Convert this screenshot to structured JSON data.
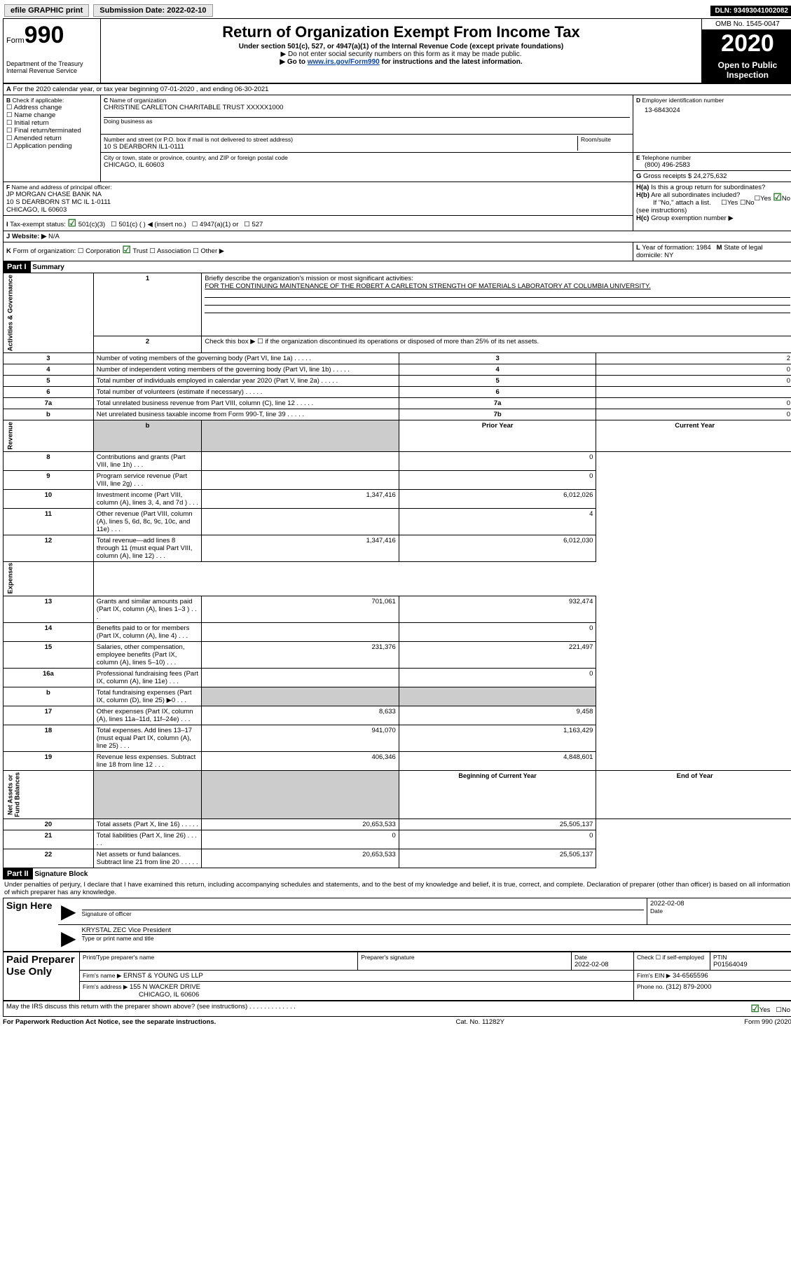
{
  "topbar": {
    "efile": "efile GRAPHIC print",
    "sub_label": "Submission Date:",
    "sub_date": "2022-02-10",
    "dln": "DLN: 93493041002082"
  },
  "header": {
    "form_prefix": "Form",
    "form_num": "990",
    "dept": "Department of the Treasury",
    "irs": "Internal Revenue Service",
    "title": "Return of Organization Exempt From Income Tax",
    "sub1": "Under section 501(c), 527, or 4947(a)(1) of the Internal Revenue Code (except private foundations)",
    "sub2": "▶ Do not enter social security numbers on this form as it may be made public.",
    "sub3_pre": "▶ Go to ",
    "sub3_link": "www.irs.gov/Form990",
    "sub3_post": " for instructions and the latest information.",
    "omb": "OMB No. 1545-0047",
    "year": "2020",
    "public1": "Open to Public",
    "public2": "Inspection"
  },
  "lineA": "For the 2020 calendar year, or tax year beginning 07-01-2020   , and ending 06-30-2021",
  "boxB": {
    "label": "Check if applicable:",
    "opts": [
      "Address change",
      "Name change",
      "Initial return",
      "Final return/terminated",
      "Amended return",
      "Application pending"
    ]
  },
  "boxC": {
    "name_label": "Name of organization",
    "name": "CHRISTINE CARLETON CHARITABLE TRUST XXXXX1000",
    "dba_label": "Doing business as",
    "addr_label": "Number and street (or P.O. box if mail is not delivered to street address)",
    "room": "Room/suite",
    "addr": "10 S DEARBORN IL1-0111",
    "city_label": "City or town, state or province, country, and ZIP or foreign postal code",
    "city": "CHICAGO, IL  60603"
  },
  "boxD": {
    "label": "Employer identification number",
    "val": "13-6843024"
  },
  "boxE": {
    "label": "Telephone number",
    "val": "(800) 496-2583"
  },
  "boxG": {
    "label": "Gross receipts $",
    "val": "24,275,632"
  },
  "boxF": {
    "label": "Name and address of principal officer:",
    "name": "JP MORGAN CHASE BANK NA",
    "addr1": "10 S DEARBORN ST MC IL 1-0111",
    "addr2": "CHICAGO, IL  60603"
  },
  "boxH": {
    "a": "Is this a group return for subordinates?",
    "b": "Are all subordinates included?",
    "note": "If \"No,\" attach a list. (see instructions)",
    "c": "Group exemption number ▶"
  },
  "lineI": {
    "label": "Tax-exempt status:",
    "o1": "501(c)(3)",
    "o2": "501(c) (  ) ◀ (insert no.)",
    "o3": "4947(a)(1) or",
    "o4": "527"
  },
  "lineJ": {
    "label": "Website: ▶",
    "val": "N/A"
  },
  "lineK": {
    "label": "Form of organization:",
    "o1": "Corporation",
    "o2": "Trust",
    "o3": "Association",
    "o4": "Other ▶"
  },
  "lineL": {
    "label": "Year of formation:",
    "val": "1984"
  },
  "lineM": {
    "label": "State of legal domicile:",
    "val": "NY"
  },
  "part1": {
    "title": "Part I",
    "sub": "Summary",
    "q1": "Briefly describe the organization's mission or most significant activities:",
    "q1a": "FOR THE CONTINUING MAINTENANCE OF THE ROBERT A CARLETON STRENGTH OF MATERIALS LABORATORY AT COLUMBIA UNIVERSITY.",
    "q2": "Check this box ▶ ☐  if the organization discontinued its operations or disposed of more than 25% of its net assets.",
    "rows_gov": [
      {
        "n": "3",
        "t": "Number of voting members of the governing body (Part VI, line 1a)",
        "box": "3",
        "v": "2"
      },
      {
        "n": "4",
        "t": "Number of independent voting members of the governing body (Part VI, line 1b)",
        "box": "4",
        "v": "0"
      },
      {
        "n": "5",
        "t": "Total number of individuals employed in calendar year 2020 (Part V, line 2a)",
        "box": "5",
        "v": "0"
      },
      {
        "n": "6",
        "t": "Total number of volunteers (estimate if necessary)",
        "box": "6",
        "v": ""
      },
      {
        "n": "7a",
        "t": "Total unrelated business revenue from Part VIII, column (C), line 12",
        "box": "7a",
        "v": "0"
      },
      {
        "n": "b",
        "t": "Net unrelated business taxable income from Form 990-T, line 39",
        "box": "7b",
        "v": "0"
      }
    ],
    "hdr_prior": "Prior Year",
    "hdr_curr": "Current Year",
    "rows_rev": [
      {
        "n": "8",
        "t": "Contributions and grants (Part VIII, line 1h)",
        "p": "",
        "c": "0"
      },
      {
        "n": "9",
        "t": "Program service revenue (Part VIII, line 2g)",
        "p": "",
        "c": "0"
      },
      {
        "n": "10",
        "t": "Investment income (Part VIII, column (A), lines 3, 4, and 7d )",
        "p": "1,347,416",
        "c": "6,012,026"
      },
      {
        "n": "11",
        "t": "Other revenue (Part VIII, column (A), lines 5, 6d, 8c, 9c, 10c, and 11e)",
        "p": "",
        "c": "4"
      },
      {
        "n": "12",
        "t": "Total revenue—add lines 8 through 11 (must equal Part VIII, column (A), line 12)",
        "p": "1,347,416",
        "c": "6,012,030"
      }
    ],
    "rows_exp": [
      {
        "n": "13",
        "t": "Grants and similar amounts paid (Part IX, column (A), lines 1–3 )",
        "p": "701,061",
        "c": "932,474"
      },
      {
        "n": "14",
        "t": "Benefits paid to or for members (Part IX, column (A), line 4)",
        "p": "",
        "c": "0"
      },
      {
        "n": "15",
        "t": "Salaries, other compensation, employee benefits (Part IX, column (A), lines 5–10)",
        "p": "231,376",
        "c": "221,497"
      },
      {
        "n": "16a",
        "t": "Professional fundraising fees (Part IX, column (A), line 11e)",
        "p": "",
        "c": "0"
      },
      {
        "n": "b",
        "t": "Total fundraising expenses (Part IX, column (D), line 25) ▶0",
        "p": "GRAY",
        "c": "GRAY"
      },
      {
        "n": "17",
        "t": "Other expenses (Part IX, column (A), lines 11a–11d, 11f–24e)",
        "p": "8,633",
        "c": "9,458"
      },
      {
        "n": "18",
        "t": "Total expenses. Add lines 13–17 (must equal Part IX, column (A), line 25)",
        "p": "941,070",
        "c": "1,163,429"
      },
      {
        "n": "19",
        "t": "Revenue less expenses. Subtract line 18 from line 12",
        "p": "406,346",
        "c": "4,848,601"
      }
    ],
    "hdr_beg": "Beginning of Current Year",
    "hdr_end": "End of Year",
    "rows_net": [
      {
        "n": "20",
        "t": "Total assets (Part X, line 16)",
        "p": "20,653,533",
        "c": "25,505,137"
      },
      {
        "n": "21",
        "t": "Total liabilities (Part X, line 26)",
        "p": "0",
        "c": "0"
      },
      {
        "n": "22",
        "t": "Net assets or fund balances. Subtract line 21 from line 20",
        "p": "20,653,533",
        "c": "25,505,137"
      }
    ]
  },
  "part2": {
    "title": "Part II",
    "sub": "Signature Block",
    "decl": "Under penalties of perjury, I declare that I have examined this return, including accompanying schedules and statements, and to the best of my knowledge and belief, it is true, correct, and complete. Declaration of preparer (other than officer) is based on all information of which preparer has any knowledge."
  },
  "sign": {
    "here": "Sign Here",
    "sig": "Signature of officer",
    "date_l": "Date",
    "date": "2022-02-08",
    "name": "KRYSTAL ZEC Vice President",
    "name_l": "Type or print name and title"
  },
  "paid": {
    "title": "Paid Preparer Use Only",
    "h1": "Print/Type preparer's name",
    "h2": "Preparer's signature",
    "h3": "Date",
    "d3": "2022-02-08",
    "h4": "Check ☐  if self-employed",
    "h5": "PTIN",
    "p5": "P01564049",
    "firm_l": "Firm's name  ▶",
    "firm": "ERNST & YOUNG US LLP",
    "ein_l": "Firm's EIN ▶",
    "ein": "34-6565596",
    "addr_l": "Firm's address ▶",
    "addr": "155 N WACKER DRIVE",
    "city": "CHICAGO, IL  60606",
    "ph_l": "Phone no.",
    "ph": "(312) 879-2000"
  },
  "footer": {
    "q": "May the IRS discuss this return with the preparer shown above? (see instructions)",
    "pra": "For Paperwork Reduction Act Notice, see the separate instructions.",
    "cat": "Cat. No. 11282Y",
    "form": "Form 990 (2020)"
  }
}
